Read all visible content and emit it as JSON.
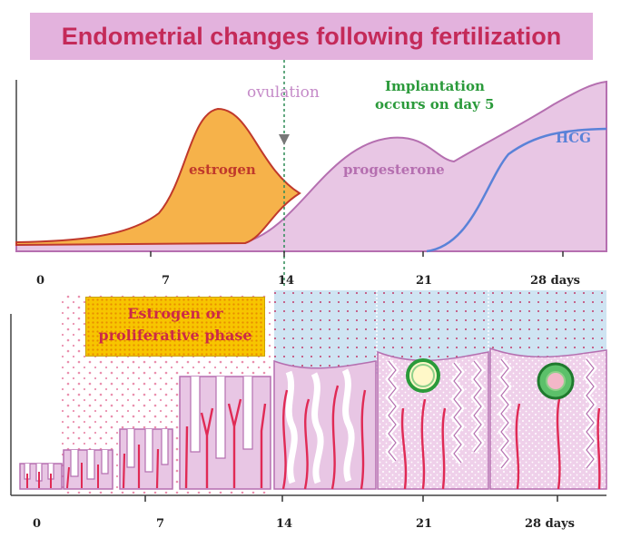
{
  "title": "Endometrial changes following fertilization",
  "chart": {
    "curves": {
      "estrogen": "estrogen",
      "progesterone": "progesterone",
      "hcg": "HCG"
    },
    "ovulation": "ovulation",
    "implantation_line1": "Implantation",
    "implantation_line2": "occurs on day 5",
    "day_ticks": [
      "0",
      "7",
      "14",
      "21",
      "28 days"
    ]
  },
  "phase_box": {
    "line1": "Estrogen or",
    "line2": "proliferative phase"
  },
  "bottom_day_ticks": [
    "0",
    "7",
    "14",
    "21",
    "28 days"
  ],
  "colors": {
    "title_bg": "#e3b2dd",
    "title_text": "#c42a59",
    "estrogen_fill": "#f6b24a",
    "estrogen_stroke": "#c0392b",
    "progesterone_fill": "#e8c6e4",
    "progesterone_stroke": "#b56fb0",
    "hcg": "#5a82d8",
    "ovulation_text": "#c58ac8",
    "implantation_text": "#2a9a3a",
    "arteries": "#e02a55",
    "uterine_lumen": "#cfe4f2"
  }
}
